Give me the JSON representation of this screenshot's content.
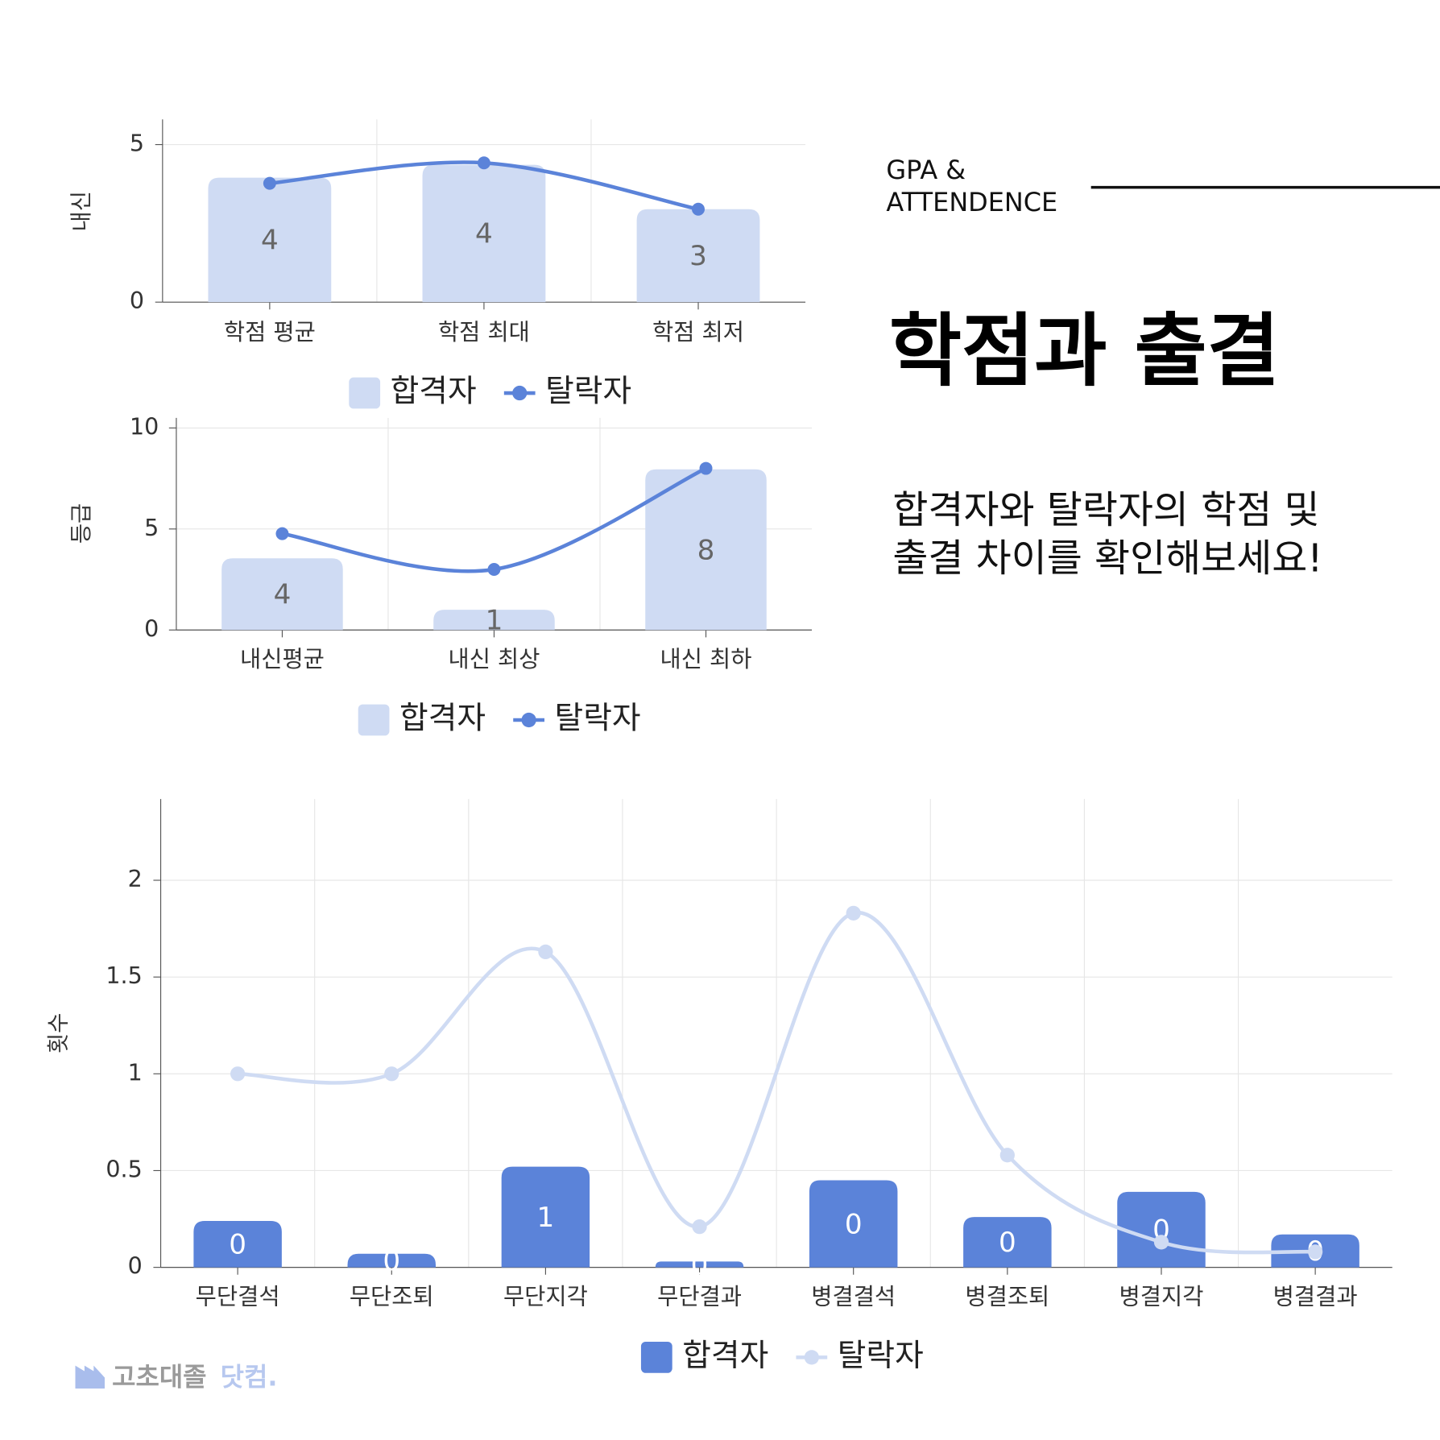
{
  "header": {
    "eyebrow": [
      "GPA &",
      "ATTENDENCE"
    ],
    "title": "학점과 출결",
    "description": [
      "합격자와 탈락자의 학점 및",
      "출결 차이를 확인해보세요!"
    ]
  },
  "logo": {
    "name": "고초대졸",
    "suffix": "닷컴."
  },
  "chart_data": [
    {
      "type": "combo",
      "y_label": "내신",
      "categories": [
        "학점 평균",
        "학점 최대",
        "학점 최저"
      ],
      "ylim": [
        0,
        5.8
      ],
      "yticks": [
        0,
        5
      ],
      "grid": true,
      "series": [
        {
          "name": "합격자",
          "type": "bar",
          "color": "#cfdbf3",
          "values": [
            3.95,
            4.36,
            2.95
          ],
          "value_labels": [
            "4",
            "4",
            "3"
          ]
        },
        {
          "name": "탈락자",
          "type": "line",
          "color": "#5b83d9",
          "values": [
            3.77,
            4.42,
            2.95
          ]
        }
      ]
    },
    {
      "type": "combo",
      "y_label": "등급",
      "categories": [
        "내신평균",
        "내신 최상",
        "내신 최하"
      ],
      "ylim": [
        0,
        10.5
      ],
      "yticks": [
        0,
        5,
        10
      ],
      "grid": true,
      "series": [
        {
          "name": "합격자",
          "type": "bar",
          "color": "#cfdbf3",
          "values": [
            3.55,
            1.0,
            7.95
          ],
          "value_labels": [
            "4",
            "1",
            "8"
          ]
        },
        {
          "name": "탈락자",
          "type": "line",
          "color": "#5b83d9",
          "values": [
            4.77,
            3.0,
            8.0
          ]
        }
      ]
    },
    {
      "type": "combo",
      "y_label": "횟수",
      "categories": [
        "무단결석",
        "무단조퇴",
        "무단지각",
        "무단결과",
        "병결결석",
        "병결조퇴",
        "병결지각",
        "병결결과"
      ],
      "ylim": [
        0,
        2.42
      ],
      "yticks": [
        0,
        0.5,
        1,
        1.5,
        2
      ],
      "grid": true,
      "series": [
        {
          "name": "합격자",
          "type": "bar",
          "color": "#5b83d9",
          "values": [
            0.24,
            0.07,
            0.52,
            0.03,
            0.45,
            0.26,
            0.39,
            0.17
          ],
          "value_labels": [
            "0",
            "0",
            "1",
            "0",
            "0",
            "0",
            "0",
            "0"
          ]
        },
        {
          "name": "탈락자",
          "type": "line",
          "color": "#cfdbf3",
          "values": [
            1.0,
            1.0,
            1.63,
            0.21,
            1.83,
            0.58,
            0.13,
            0.08
          ]
        }
      ]
    }
  ]
}
